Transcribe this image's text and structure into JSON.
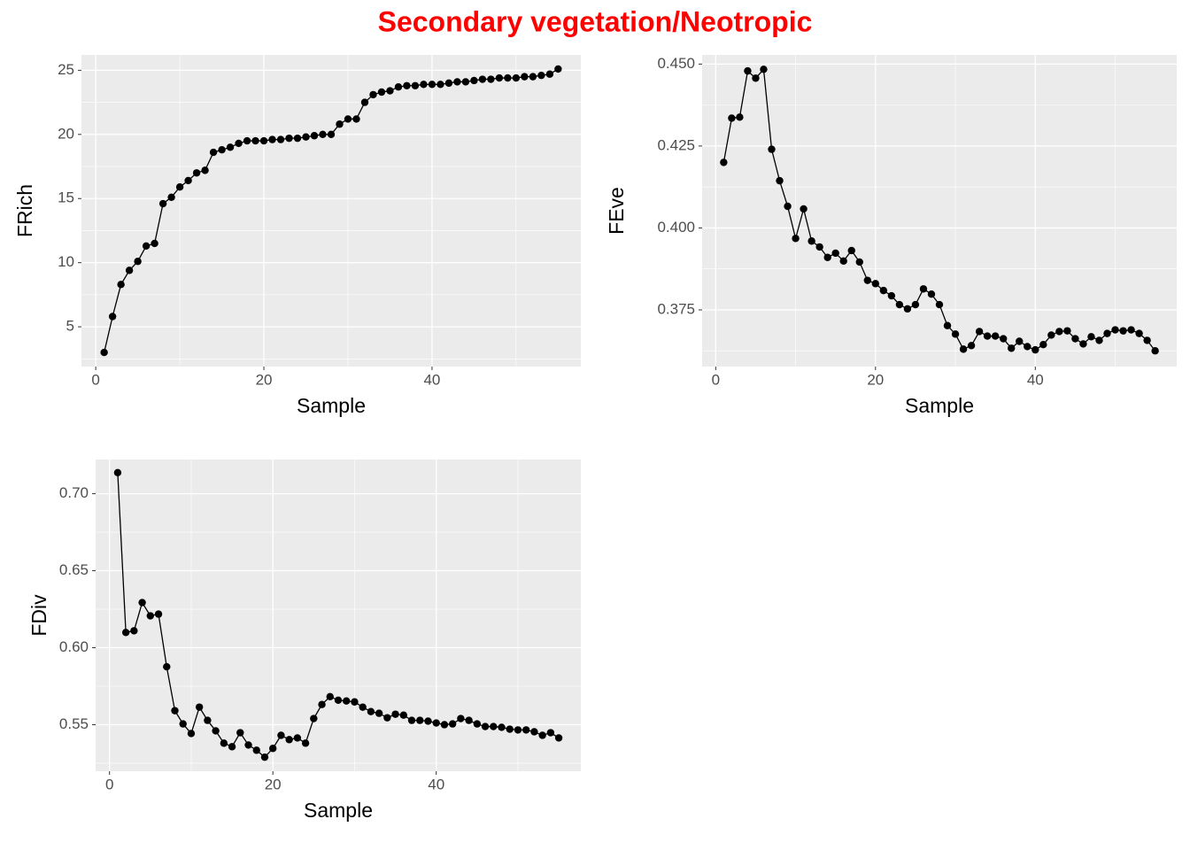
{
  "title": "Secondary vegetation/Neotropic",
  "chart_data": [
    {
      "type": "line",
      "xlabel": "Sample",
      "ylabel": "FRich",
      "color": "#000000",
      "grid": true,
      "x": [
        1,
        2,
        3,
        4,
        5,
        6,
        7,
        8,
        9,
        10,
        11,
        12,
        13,
        14,
        15,
        16,
        17,
        18,
        19,
        20,
        21,
        22,
        23,
        24,
        25,
        26,
        27,
        28,
        29,
        30,
        31,
        32,
        33,
        34,
        35,
        36,
        37,
        38,
        39,
        40,
        41,
        42,
        43,
        44,
        45,
        46,
        47,
        48,
        49,
        50,
        51,
        52,
        53,
        54,
        55
      ],
      "values": [
        3.0,
        5.8,
        8.3,
        9.4,
        10.1,
        11.3,
        11.5,
        14.6,
        15.1,
        15.9,
        16.4,
        17.0,
        17.2,
        18.6,
        18.8,
        19.0,
        19.3,
        19.5,
        19.5,
        19.5,
        19.6,
        19.6,
        19.7,
        19.7,
        19.8,
        19.9,
        20.0,
        20.0,
        20.8,
        21.2,
        21.2,
        22.5,
        23.1,
        23.3,
        23.4,
        23.7,
        23.8,
        23.8,
        23.9,
        23.9,
        23.9,
        24.0,
        24.1,
        24.1,
        24.2,
        24.3,
        24.3,
        24.4,
        24.4,
        24.4,
        24.5,
        24.5,
        24.6,
        24.7,
        25.1
      ],
      "xlim": [
        -1.7,
        57.7
      ],
      "ylim": [
        1.9,
        26.2
      ],
      "xticks": [
        0,
        20,
        40
      ],
      "yticks": [
        5,
        10,
        15,
        20,
        25
      ]
    },
    {
      "type": "line",
      "xlabel": "Sample",
      "ylabel": "FEve",
      "color": "#000000",
      "grid": true,
      "x": [
        1,
        2,
        3,
        4,
        5,
        6,
        7,
        8,
        9,
        10,
        11,
        12,
        13,
        14,
        15,
        16,
        17,
        18,
        19,
        20,
        21,
        22,
        23,
        24,
        25,
        26,
        27,
        28,
        29,
        30,
        31,
        32,
        33,
        34,
        35,
        36,
        37,
        38,
        39,
        40,
        41,
        42,
        43,
        44,
        45,
        46,
        47,
        48,
        49,
        50,
        51,
        52,
        53,
        54,
        55
      ],
      "values": [
        0.42,
        0.4335,
        0.4338,
        0.4479,
        0.4457,
        0.4484,
        0.424,
        0.4144,
        0.4066,
        0.3968,
        0.4058,
        0.396,
        0.3942,
        0.391,
        0.3923,
        0.3899,
        0.3931,
        0.3896,
        0.384,
        0.383,
        0.3809,
        0.3793,
        0.3766,
        0.3753,
        0.3766,
        0.3814,
        0.3798,
        0.3766,
        0.3702,
        0.3676,
        0.363,
        0.3641,
        0.3684,
        0.367,
        0.367,
        0.3662,
        0.3633,
        0.3654,
        0.3638,
        0.3628,
        0.3644,
        0.3673,
        0.3684,
        0.3686,
        0.3662,
        0.3646,
        0.3668,
        0.3657,
        0.3678,
        0.3689,
        0.3686,
        0.3689,
        0.3678,
        0.3657,
        0.3625
      ],
      "xlim": [
        -1.7,
        57.7
      ],
      "ylim": [
        0.3577,
        0.4528
      ],
      "xticks": [
        0,
        20,
        40
      ],
      "yticks": [
        0.375,
        {
          "value": 0.4,
          "label": "0.400"
        },
        0.425,
        {
          "value": 0.45,
          "label": "0.450"
        }
      ]
    },
    {
      "type": "line",
      "xlabel": "Sample",
      "ylabel": "FDiv",
      "color": "#000000",
      "grid": true,
      "x": [
        1,
        2,
        3,
        4,
        5,
        6,
        7,
        8,
        9,
        10,
        11,
        12,
        13,
        14,
        15,
        16,
        17,
        18,
        19,
        20,
        21,
        22,
        23,
        24,
        25,
        26,
        27,
        28,
        29,
        30,
        31,
        32,
        33,
        34,
        35,
        36,
        37,
        38,
        39,
        40,
        41,
        42,
        43,
        44,
        45,
        46,
        47,
        48,
        49,
        50,
        51,
        52,
        53,
        54,
        55
      ],
      "values": [
        0.7137,
        0.6099,
        0.611,
        0.6293,
        0.6207,
        0.6218,
        0.5876,
        0.5591,
        0.5505,
        0.5443,
        0.5614,
        0.5528,
        0.546,
        0.538,
        0.5357,
        0.5448,
        0.5368,
        0.5334,
        0.5289,
        0.5346,
        0.5431,
        0.5403,
        0.5414,
        0.538,
        0.554,
        0.5631,
        0.5682,
        0.5659,
        0.5654,
        0.5648,
        0.5614,
        0.5585,
        0.5574,
        0.5545,
        0.5568,
        0.5562,
        0.5528,
        0.5528,
        0.5523,
        0.5511,
        0.55,
        0.5505,
        0.554,
        0.5528,
        0.5505,
        0.5488,
        0.5488,
        0.5483,
        0.5471,
        0.5466,
        0.5466,
        0.5454,
        0.5431,
        0.5448,
        0.5414
      ],
      "xlim": [
        -1.7,
        57.7
      ],
      "ylim": [
        0.5198,
        0.7222
      ],
      "xticks": [
        0,
        20,
        40
      ],
      "yticks": [
        0.55,
        {
          "value": 0.6,
          "label": "0.60"
        },
        0.65,
        {
          "value": 0.7,
          "label": "0.70"
        }
      ]
    }
  ]
}
